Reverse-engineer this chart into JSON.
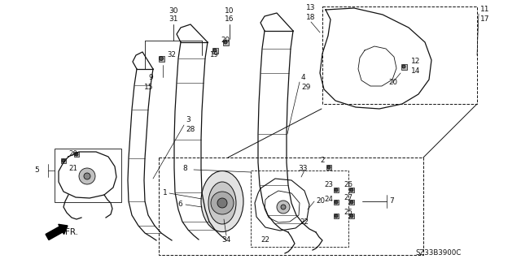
{
  "bg_color": "#ffffff",
  "line_color": "#111111",
  "diagram_code": "SZ33B3900C",
  "figsize": [
    6.4,
    3.19
  ],
  "dpi": 100
}
